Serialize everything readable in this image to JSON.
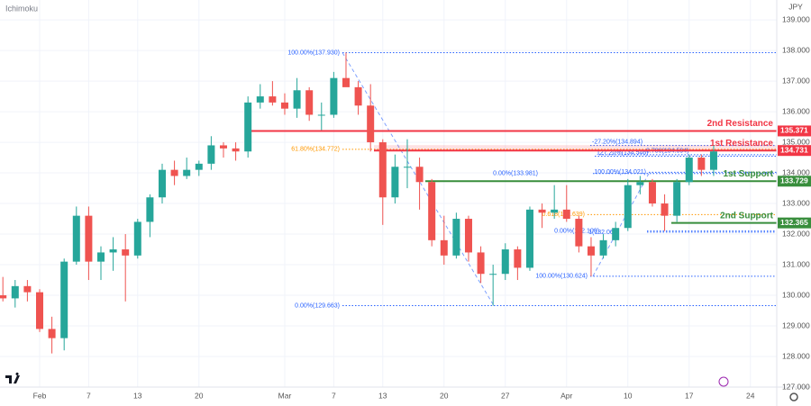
{
  "chart_data": {
    "type": "candlestick",
    "indicator": "Ichimoku",
    "currency": "JPY",
    "up_color": "#26a69a",
    "down_color": "#ef5350",
    "grid": true,
    "ylim": [
      127,
      139.65
    ],
    "yticks": [
      {
        "value": 127,
        "label": "127.000"
      },
      {
        "value": 128,
        "label": "128.000"
      },
      {
        "value": 129,
        "label": "129.000"
      },
      {
        "value": 130,
        "label": "130.000"
      },
      {
        "value": 131,
        "label": "131.000"
      },
      {
        "value": 132,
        "label": "132.000"
      },
      {
        "value": 133,
        "label": "133.000"
      },
      {
        "value": 134,
        "label": "134.000"
      },
      {
        "value": 135,
        "label": "135.000"
      },
      {
        "value": 136,
        "label": "136.000"
      },
      {
        "value": 137,
        "label": "137.000"
      },
      {
        "value": 138,
        "label": "138.000"
      },
      {
        "value": 139,
        "label": "139.000"
      }
    ],
    "xlim": [
      -0.235,
      63.15
    ],
    "xticks": [
      {
        "value": 3,
        "label": "Feb"
      },
      {
        "value": 7,
        "label": "7"
      },
      {
        "value": 11,
        "label": "13"
      },
      {
        "value": 16,
        "label": "20"
      },
      {
        "value": 23,
        "label": "Mar"
      },
      {
        "value": 27,
        "label": "7"
      },
      {
        "value": 31,
        "label": "13"
      },
      {
        "value": 36,
        "label": "20"
      },
      {
        "value": 41,
        "label": "27"
      },
      {
        "value": 46,
        "label": "Apr"
      },
      {
        "value": 51,
        "label": "10"
      },
      {
        "value": 56,
        "label": "17"
      },
      {
        "value": 61,
        "label": "24"
      }
    ],
    "open": [
      130.0,
      129.9,
      130.3,
      130.1,
      128.9,
      128.6,
      131.1,
      132.6,
      131.1,
      131.4,
      131.5,
      131.3,
      132.4,
      133.2,
      134.1,
      133.9,
      134.1,
      134.3,
      134.9,
      134.8,
      134.7,
      136.3,
      136.5,
      136.3,
      136.1,
      136.7,
      135.9,
      135.9,
      137.1,
      136.8,
      136.2,
      135.0,
      133.2,
      134.2,
      134.2,
      133.7,
      131.8,
      131.3,
      132.5,
      131.4,
      130.7,
      130.7,
      131.5,
      130.9,
      132.8,
      132.7,
      132.8,
      132.5,
      131.6,
      131.3,
      131.8,
      132.2,
      133.6,
      133.7,
      133.0,
      132.6,
      133.7,
      134.5,
      134.1
    ],
    "high": [
      130.6,
      130.5,
      130.5,
      130.2,
      129.3,
      131.2,
      132.9,
      132.9,
      131.6,
      131.9,
      132.0,
      132.5,
      133.3,
      134.3,
      134.4,
      134.5,
      134.4,
      135.2,
      135.0,
      135.0,
      136.5,
      136.9,
      137.0,
      136.6,
      137.1,
      136.8,
      136.3,
      137.3,
      137.93,
      137.0,
      136.9,
      135.1,
      134.6,
      135.1,
      134.5,
      133.8,
      132.6,
      132.7,
      132.6,
      131.6,
      131.0,
      131.7,
      131.6,
      132.9,
      133.0,
      133.6,
      133.6,
      132.6,
      131.9,
      132.0,
      132.4,
      133.8,
      133.9,
      133.8,
      133.3,
      133.8,
      134.6,
      134.6,
      134.9
    ],
    "low": [
      129.8,
      129.6,
      129.8,
      128.8,
      128.1,
      128.2,
      131.0,
      130.5,
      130.5,
      130.8,
      129.8,
      131.2,
      131.9,
      133.0,
      133.6,
      133.8,
      133.9,
      134.1,
      134.5,
      134.4,
      134.5,
      136.1,
      136.2,
      135.9,
      135.8,
      135.7,
      135.4,
      135.8,
      136.9,
      135.9,
      134.7,
      132.3,
      133.0,
      133.5,
      132.8,
      131.6,
      131.0,
      131.2,
      131.1,
      130.4,
      129.66,
      130.5,
      130.5,
      130.8,
      132.2,
      132.5,
      132.4,
      131.4,
      130.62,
      131.2,
      131.6,
      132.1,
      133.3,
      132.9,
      132.1,
      132.4,
      133.6,
      133.9,
      133.9
    ],
    "close": [
      129.9,
      130.3,
      130.1,
      128.9,
      128.6,
      131.1,
      132.6,
      131.1,
      131.4,
      131.5,
      131.3,
      132.4,
      133.2,
      134.1,
      133.9,
      134.1,
      134.3,
      134.9,
      134.8,
      134.7,
      136.3,
      136.5,
      136.3,
      136.1,
      136.7,
      135.9,
      135.9,
      137.1,
      136.8,
      136.2,
      135.0,
      133.2,
      134.2,
      134.2,
      133.7,
      131.8,
      131.3,
      132.5,
      131.4,
      130.7,
      130.7,
      131.5,
      130.9,
      132.8,
      132.7,
      132.8,
      132.5,
      131.6,
      131.3,
      131.8,
      132.2,
      133.6,
      133.7,
      133.0,
      132.6,
      133.7,
      134.5,
      134.1,
      134.7
    ],
    "levels": [
      {
        "name": "2nd Resistance",
        "value": 135.371,
        "color": "#f23645"
      },
      {
        "name": "1st Resistance",
        "value": 134.731,
        "color": "#f23645"
      },
      {
        "name": "1st Support",
        "value": 133.729,
        "color": "#388e3c"
      },
      {
        "name": "2nd Support",
        "value": 132.365,
        "color": "#388e3c"
      }
    ],
    "fib_levels": [
      {
        "label": "100.00%(137.930)",
        "value": 137.93,
        "color": "#2962ff"
      },
      {
        "label": "61.80%(134.772)",
        "value": 134.772,
        "color": "#ff9800"
      },
      {
        "label": "0.00%(129.663)",
        "value": 129.663,
        "color": "#2962ff"
      },
      {
        "label": "-27.20%(134.894)",
        "value": 134.894,
        "color": "#2962ff"
      },
      {
        "label": "0.786(134.594)",
        "value": 134.594,
        "color": "#2962ff"
      },
      {
        "label": "127.20%(134.546)",
        "value": 134.546,
        "color": "#2962ff"
      },
      {
        "label": "100.00%(134.021)",
        "value": 134.021,
        "color": "#2962ff"
      },
      {
        "label": "0.00%(133.981)",
        "value": 133.981,
        "color": "#2962ff"
      },
      {
        "label": "0.618(132.639)",
        "value": 132.639,
        "color": "#ff9800"
      },
      {
        "label": "1(132.062)",
        "value": 132.062,
        "color": "#2962ff"
      },
      {
        "label": "0.00%(132.100)",
        "value": 132.1,
        "color": "#2962ff"
      },
      {
        "label": "100.00%(130.624)",
        "value": 130.624,
        "color": "#2962ff"
      }
    ]
  }
}
